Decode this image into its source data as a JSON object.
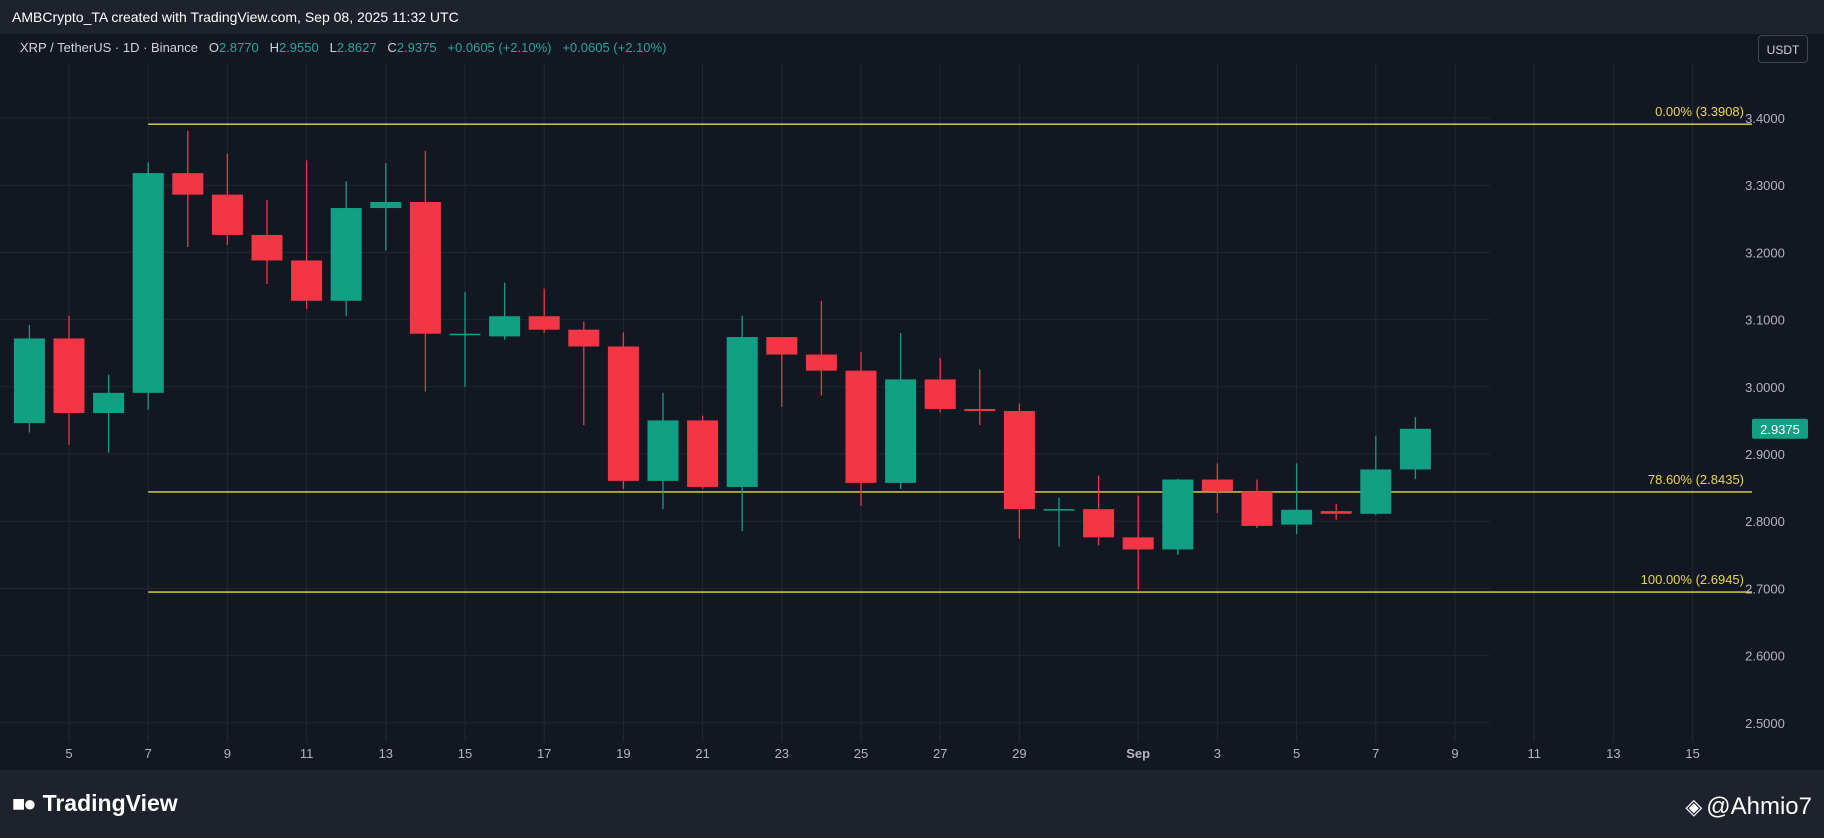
{
  "header": {
    "attribution": "AMBCrypto_TA created with TradingView.com, Sep 08, 2025 11:32 UTC"
  },
  "symbol": {
    "name": "XRP / TetherUS · 1D · Binance",
    "o_label": "O",
    "o": "2.8770",
    "h_label": "H",
    "h": "2.9550",
    "l_label": "L",
    "l": "2.8627",
    "c_label": "C",
    "c": "2.9375",
    "change": "+0.0605 (+2.10%)",
    "change2": "+0.0605 (+2.10%)"
  },
  "currency_button": "USDT",
  "footer": {
    "logo_text": "TradingView",
    "watermark": "@Ahmio7"
  },
  "colors": {
    "up": "#12a085",
    "down": "#f23645",
    "fib": "#e8d84a",
    "background": "#131722"
  },
  "chart_data": {
    "type": "candlestick",
    "title": "",
    "xlabel": "",
    "ylabel": "",
    "ylim": [
      2.45,
      3.505
    ],
    "y_ticks": [
      "2.5000",
      "2.6000",
      "2.7000",
      "2.8000",
      "2.9000",
      "3.0000",
      "3.1000",
      "3.2000",
      "3.3000",
      "3.4000"
    ],
    "x_ticks": [
      {
        "label": "5",
        "day": 5
      },
      {
        "label": "7",
        "day": 7
      },
      {
        "label": "9",
        "day": 9
      },
      {
        "label": "11",
        "day": 11
      },
      {
        "label": "13",
        "day": 13
      },
      {
        "label": "15",
        "day": 15
      },
      {
        "label": "17",
        "day": 17
      },
      {
        "label": "19",
        "day": 19
      },
      {
        "label": "21",
        "day": 21
      },
      {
        "label": "23",
        "day": 23
      },
      {
        "label": "25",
        "day": 25
      },
      {
        "label": "27",
        "day": 27
      },
      {
        "label": "29",
        "day": 29
      },
      {
        "label": "Sep",
        "day": 32
      },
      {
        "label": "3",
        "day": 34
      },
      {
        "label": "5",
        "day": 36
      },
      {
        "label": "7",
        "day": 38
      },
      {
        "label": "9",
        "day": 40
      },
      {
        "label": "11",
        "day": 42
      },
      {
        "label": "13",
        "day": 44
      },
      {
        "label": "15",
        "day": 46
      }
    ],
    "candles": [
      {
        "day": 4,
        "o": 2.946,
        "h": 3.092,
        "l": 2.932,
        "c": 3.072
      },
      {
        "day": 5,
        "o": 3.072,
        "h": 3.106,
        "l": 2.914,
        "c": 2.961
      },
      {
        "day": 6,
        "o": 2.961,
        "h": 3.018,
        "l": 2.902,
        "c": 2.991
      },
      {
        "day": 7,
        "o": 2.991,
        "h": 3.334,
        "l": 2.966,
        "c": 3.318
      },
      {
        "day": 8,
        "o": 3.318,
        "h": 3.381,
        "l": 3.208,
        "c": 3.286
      },
      {
        "day": 9,
        "o": 3.286,
        "h": 3.347,
        "l": 3.211,
        "c": 3.226
      },
      {
        "day": 10,
        "o": 3.226,
        "h": 3.278,
        "l": 3.153,
        "c": 3.188
      },
      {
        "day": 11,
        "o": 3.188,
        "h": 3.337,
        "l": 3.116,
        "c": 3.128
      },
      {
        "day": 12,
        "o": 3.128,
        "h": 3.306,
        "l": 3.105,
        "c": 3.266
      },
      {
        "day": 13,
        "o": 3.266,
        "h": 3.333,
        "l": 3.203,
        "c": 3.275
      },
      {
        "day": 14,
        "o": 3.275,
        "h": 3.351,
        "l": 2.993,
        "c": 3.079
      },
      {
        "day": 15,
        "o": 3.079,
        "h": 3.141,
        "l": 3.0,
        "c": 3.079
      },
      {
        "day": 16,
        "o": 3.075,
        "h": 3.155,
        "l": 3.07,
        "c": 3.105
      },
      {
        "day": 17,
        "o": 3.105,
        "h": 3.146,
        "l": 3.08,
        "c": 3.085
      },
      {
        "day": 18,
        "o": 3.085,
        "h": 3.097,
        "l": 2.943,
        "c": 3.06
      },
      {
        "day": 19,
        "o": 3.06,
        "h": 3.081,
        "l": 2.848,
        "c": 2.86
      },
      {
        "day": 20,
        "o": 2.86,
        "h": 2.991,
        "l": 2.818,
        "c": 2.95
      },
      {
        "day": 21,
        "o": 2.95,
        "h": 2.957,
        "l": 2.848,
        "c": 2.851
      },
      {
        "day": 22,
        "o": 2.851,
        "h": 3.106,
        "l": 2.785,
        "c": 3.074
      },
      {
        "day": 23,
        "o": 3.074,
        "h": 3.074,
        "l": 2.97,
        "c": 3.048
      },
      {
        "day": 24,
        "o": 3.048,
        "h": 3.128,
        "l": 2.987,
        "c": 3.024
      },
      {
        "day": 25,
        "o": 3.024,
        "h": 3.052,
        "l": 2.823,
        "c": 2.857
      },
      {
        "day": 26,
        "o": 2.857,
        "h": 3.08,
        "l": 2.848,
        "c": 3.011
      },
      {
        "day": 27,
        "o": 3.011,
        "h": 3.043,
        "l": 2.962,
        "c": 2.967
      },
      {
        "day": 28,
        "o": 2.967,
        "h": 3.026,
        "l": 2.943,
        "c": 2.964
      },
      {
        "day": 29,
        "o": 2.964,
        "h": 2.975,
        "l": 2.774,
        "c": 2.818
      },
      {
        "day": 30,
        "o": 2.818,
        "h": 2.835,
        "l": 2.762,
        "c": 2.818
      },
      {
        "day": 31,
        "o": 2.818,
        "h": 2.868,
        "l": 2.764,
        "c": 2.776
      },
      {
        "day": 32,
        "o": 2.776,
        "h": 2.838,
        "l": 2.698,
        "c": 2.758
      },
      {
        "day": 33,
        "o": 2.758,
        "h": 2.863,
        "l": 2.75,
        "c": 2.862
      },
      {
        "day": 34,
        "o": 2.862,
        "h": 2.886,
        "l": 2.812,
        "c": 2.844
      },
      {
        "day": 35,
        "o": 2.844,
        "h": 2.862,
        "l": 2.79,
        "c": 2.793
      },
      {
        "day": 36,
        "o": 2.795,
        "h": 2.886,
        "l": 2.781,
        "c": 2.817
      },
      {
        "day": 37,
        "o": 2.815,
        "h": 2.826,
        "l": 2.802,
        "c": 2.811
      },
      {
        "day": 38,
        "o": 2.811,
        "h": 2.927,
        "l": 2.809,
        "c": 2.877
      },
      {
        "day": 39,
        "o": 2.877,
        "h": 2.955,
        "l": 2.8627,
        "c": 2.9375
      }
    ],
    "fib_levels": [
      {
        "label": "0.00% (3.3908)",
        "value": 3.3908
      },
      {
        "label": "78.60% (2.8435)",
        "value": 2.8435
      },
      {
        "label": "100.00% (2.6945)",
        "value": 2.6945
      }
    ],
    "fib_start_day": 7,
    "last_price": "2.9375",
    "last_price_value": 2.9375
  }
}
